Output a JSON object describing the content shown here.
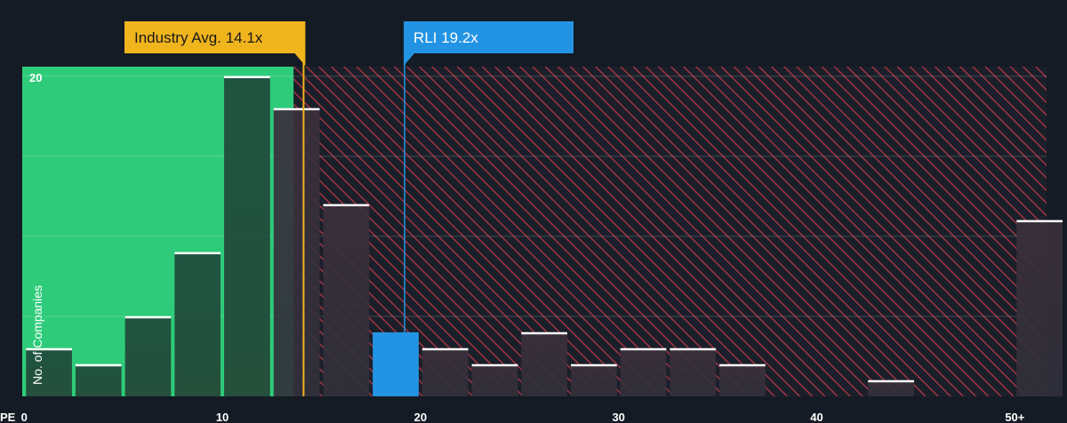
{
  "chart_data": {
    "type": "bar",
    "x_axis_label": "PE",
    "y_axis_label": "No. of Companies",
    "x_ticks": [
      "0",
      "10",
      "20",
      "30",
      "40",
      "50+"
    ],
    "x_tick_values": [
      0,
      10,
      20,
      30,
      40,
      50
    ],
    "y_ticks": [
      "20"
    ],
    "y_tick_values": [
      20
    ],
    "xlim": [
      -0.1,
      51.6
    ],
    "ylim": [
      0,
      20.6
    ],
    "grid": true,
    "bin_width": 2.5,
    "bins": [
      {
        "x": 0,
        "value": 3
      },
      {
        "x": 2.5,
        "value": 2
      },
      {
        "x": 5,
        "value": 5
      },
      {
        "x": 7.5,
        "value": 9
      },
      {
        "x": 10,
        "value": 20
      },
      {
        "x": 12.5,
        "value": 18
      },
      {
        "x": 15,
        "value": 12
      },
      {
        "x": 17.5,
        "value": 4
      },
      {
        "x": 20,
        "value": 3
      },
      {
        "x": 22.5,
        "value": 2
      },
      {
        "x": 25,
        "value": 4
      },
      {
        "x": 27.5,
        "value": 2
      },
      {
        "x": 30,
        "value": 3
      },
      {
        "x": 32.5,
        "value": 3
      },
      {
        "x": 35,
        "value": 2
      },
      {
        "x": 37.5,
        "value": 0
      },
      {
        "x": 40,
        "value": 0
      },
      {
        "x": 42.5,
        "value": 1
      },
      {
        "x": 45,
        "value": 0
      },
      {
        "x": 47.5,
        "value": 0
      },
      {
        "x": 50,
        "value": 11
      }
    ],
    "highlight_bin_x": 17.5,
    "fair_zone_end": 13.6,
    "industry_avg": {
      "label": "Industry Avg. 14.1x",
      "value": 14.1
    },
    "company": {
      "label": "RLI 19.2x",
      "value": 19.2
    },
    "colors": {
      "background": "#151b24",
      "fair_zone": "#2ecc7a",
      "overvalued_stripe": "#c0384a",
      "bar_fill": "#1f4a3c",
      "bar_top": "#ffffff",
      "highlight": "#2394e4",
      "industry_callout": "#f0b41c",
      "company_callout": "#2394e4"
    }
  }
}
